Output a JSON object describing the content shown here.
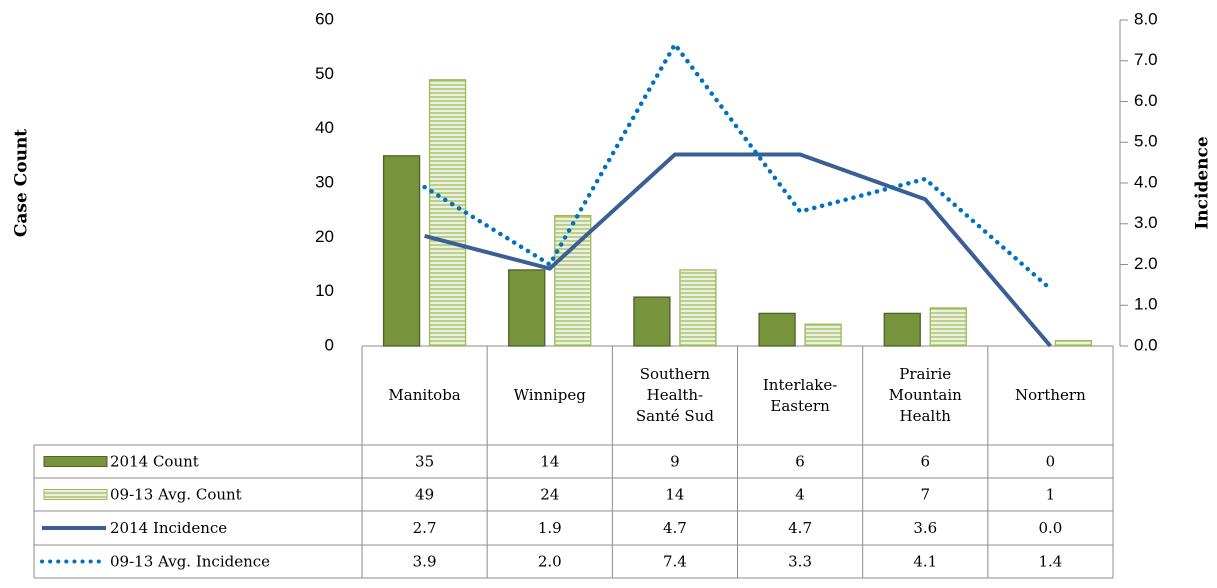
{
  "chart_data": {
    "type": "bar_line",
    "y_label": "Case Count",
    "y2_label": "Incidence",
    "categories": [
      "Manitoba",
      "Winnipeg",
      "Southern Health-Santé Sud",
      "Interlake-Eastern",
      "Prairie Mountain Health",
      "Northern"
    ],
    "series": [
      {
        "name": "2014 Count",
        "type": "bar",
        "color": "#77933c",
        "fill": "solid",
        "values": [
          35,
          14,
          9,
          6,
          6,
          0
        ]
      },
      {
        "name": "09-13 Avg. Count",
        "type": "bar",
        "color": "#9bbb59",
        "fill": "striped",
        "values": [
          49,
          24,
          14,
          4,
          7,
          1
        ]
      },
      {
        "name": "2014 Incidence",
        "type": "line",
        "axis": "y2",
        "color": "#3b5f95",
        "dash": "solid",
        "values": [
          2.7,
          1.9,
          4.7,
          4.7,
          3.6,
          0.0
        ],
        "value_labels": [
          "2.7",
          "1.9",
          "4.7",
          "4.7",
          "3.6",
          "0.0"
        ]
      },
      {
        "name": "09-13 Avg. Incidence",
        "type": "line",
        "axis": "y2",
        "color": "#0070c0",
        "dash": "dotted",
        "values": [
          3.9,
          2.0,
          7.4,
          3.3,
          4.1,
          1.4
        ],
        "value_labels": [
          "3.9",
          "2.0",
          "7.4",
          "3.3",
          "4.1",
          "1.4"
        ]
      }
    ],
    "ylim": [
      0,
      60
    ],
    "yticks": [
      0,
      10,
      20,
      30,
      40,
      50,
      60
    ],
    "y2lim": [
      0,
      8
    ],
    "y2ticks": [
      {
        "value": 0,
        "label": "0.0"
      },
      {
        "value": 1,
        "label": "1.0"
      },
      {
        "value": 2,
        "label": "2.0"
      },
      {
        "value": 3,
        "label": "3.0"
      },
      {
        "value": 4,
        "label": "4.0"
      },
      {
        "value": 5,
        "label": "5.0"
      },
      {
        "value": 6,
        "label": "6.0"
      },
      {
        "value": 7,
        "label": "7.0"
      },
      {
        "value": 8,
        "label": "8.0"
      }
    ],
    "grid": false,
    "data_table": true
  }
}
